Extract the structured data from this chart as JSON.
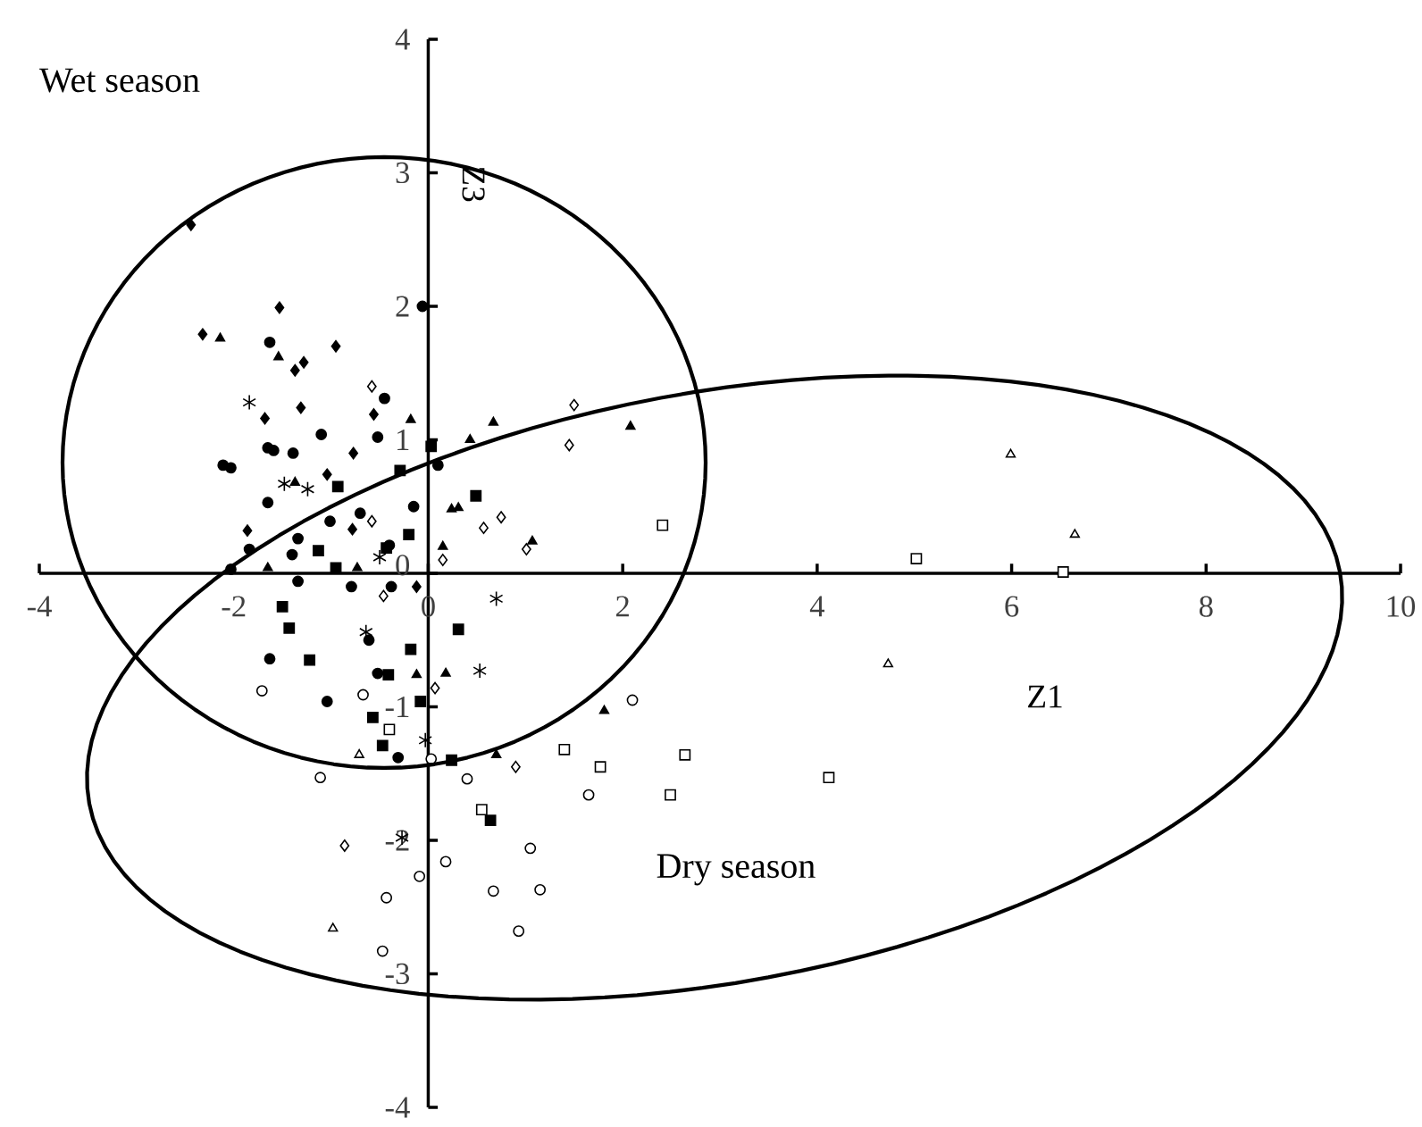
{
  "chart_data": {
    "type": "scatter",
    "xlabel": "Z1",
    "ylabel": "Z3",
    "xlim": [
      -4,
      10
    ],
    "ylim": [
      -4,
      4
    ],
    "xticks": [
      -4,
      -2,
      0,
      2,
      4,
      6,
      8,
      10
    ],
    "yticks": [
      -4,
      -3,
      -2,
      -1,
      0,
      1,
      2,
      3,
      4
    ],
    "annotations": [
      "Wet season",
      "Dry season"
    ],
    "series": [
      {
        "marker": "diamond",
        "color": "#000000",
        "x": [
          -2.44,
          -1.53,
          -2.32,
          -0.95,
          -1.28,
          -1.37,
          -1.31,
          -1.68,
          -0.56,
          -0.77,
          -1.04,
          -1.86,
          -0.78,
          -0.12
        ],
        "values": [
          2.61,
          1.99,
          1.79,
          1.7,
          1.58,
          1.52,
          1.24,
          1.16,
          1.19,
          0.9,
          0.74,
          0.32,
          0.33,
          -0.1
        ]
      },
      {
        "marker": "triangle",
        "color": "#000000",
        "x": [
          -2.14,
          -1.54,
          -0.18,
          0.43,
          0.67,
          -1.37,
          0.24,
          0.31,
          0.15,
          -1.65,
          -0.73,
          2.08,
          1.07,
          -0.12,
          0.18,
          0.7,
          1.81
        ],
        "values": [
          1.76,
          1.62,
          1.15,
          1.0,
          1.13,
          0.68,
          0.48,
          0.49,
          0.2,
          0.04,
          0.04,
          1.1,
          0.24,
          -0.76,
          -0.75,
          -1.36,
          -1.03
        ]
      },
      {
        "marker": "circle",
        "color": "#000000",
        "x": [
          -0.06,
          -1.63,
          -0.45,
          -1.1,
          -1.65,
          -1.59,
          -1.39,
          -0.52,
          -2.11,
          -2.03,
          0.1,
          -1.65,
          -0.15,
          -0.7,
          -1.01,
          -1.34,
          -1.84,
          -0.4,
          -2.03,
          -1.4,
          -1.34,
          -0.79,
          -0.38,
          -0.61,
          -1.63,
          -0.52,
          -1.04,
          -0.31
        ],
        "values": [
          2.0,
          1.73,
          1.31,
          1.04,
          0.94,
          0.92,
          0.9,
          1.02,
          0.81,
          0.79,
          0.81,
          0.53,
          0.5,
          0.45,
          0.39,
          0.26,
          0.18,
          0.21,
          0.03,
          0.14,
          -0.06,
          -0.1,
          -0.1,
          -0.5,
          -0.64,
          -0.75,
          -0.96,
          -1.38
        ]
      },
      {
        "marker": "square",
        "color": "#000000",
        "x": [
          0.03,
          -0.29,
          -0.93,
          0.49,
          -0.2,
          -1.13,
          -0.95,
          -0.43,
          -1.5,
          -1.43,
          -1.22,
          -0.18,
          0.31,
          -0.41,
          -0.08,
          -0.57,
          -0.47,
          0.24,
          0.64
        ],
        "values": [
          0.95,
          0.77,
          0.65,
          0.58,
          0.29,
          0.17,
          0.04,
          0.19,
          -0.25,
          -0.41,
          -0.65,
          -0.57,
          -0.42,
          -0.76,
          -0.96,
          -1.08,
          -1.29,
          -1.4,
          -1.85
        ]
      },
      {
        "marker": "cross",
        "color": "#000000",
        "x": [
          -1.84,
          -1.48,
          -1.24,
          -0.5,
          0.7,
          -0.64,
          0.53,
          -0.03,
          -0.27
        ],
        "values": [
          1.28,
          0.67,
          0.63,
          0.12,
          -0.19,
          -0.44,
          -0.73,
          -1.25,
          -1.98
        ]
      },
      {
        "marker": "diamond",
        "color": "#ffffff",
        "x": [
          -0.58,
          -0.58,
          0.75,
          0.57,
          0.15,
          1.5,
          1.45,
          1.01,
          0.9,
          -0.46,
          0.07,
          -0.86
        ],
        "values": [
          1.4,
          0.39,
          0.42,
          0.34,
          0.1,
          1.26,
          0.96,
          0.18,
          -1.45,
          -0.17,
          -0.86,
          -2.04
        ]
      },
      {
        "marker": "triangle",
        "color": "#ffffff",
        "x": [
          5.99,
          6.65,
          4.73,
          -0.71,
          -0.98
        ],
        "values": [
          0.89,
          0.29,
          -0.68,
          -1.36,
          -2.66
        ]
      },
      {
        "marker": "square",
        "color": "#ffffff",
        "x": [
          2.41,
          5.02,
          6.53,
          1.4,
          1.77,
          2.64,
          2.49,
          4.12,
          -0.4,
          0.55
        ],
        "values": [
          0.36,
          0.11,
          0.01,
          -1.32,
          -1.45,
          -1.36,
          -1.66,
          -1.53,
          -1.17,
          -1.77
        ]
      },
      {
        "marker": "circle",
        "color": "#ffffff",
        "x": [
          2.1,
          1.65,
          -0.67,
          0.03,
          0.4,
          -1.11,
          1.05,
          0.18,
          -0.09,
          0.67,
          1.15,
          -0.43,
          0.93,
          -0.47,
          -1.71
        ],
        "values": [
          -0.95,
          -1.66,
          -0.91,
          -1.39,
          -1.54,
          -1.53,
          -2.06,
          -2.16,
          -2.27,
          -2.38,
          -2.37,
          -2.43,
          -2.68,
          -2.83,
          -0.88
        ]
      }
    ]
  }
}
